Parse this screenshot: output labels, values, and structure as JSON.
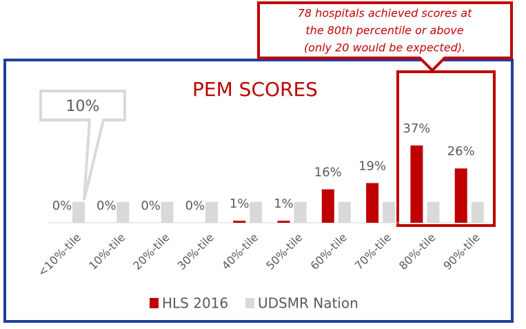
{
  "chart_data": {
    "type": "bar",
    "title": "PEM SCORES",
    "categories": [
      "<10%-tile",
      "10%-tile",
      "20%-tile",
      "30%-tile",
      "40%-tile",
      "50%-tile",
      "60%-tile",
      "70%-tile",
      "80%-tile",
      "90%-tile"
    ],
    "series": [
      {
        "name": "HLS 2016",
        "color": "#c00000",
        "values": [
          0,
          0,
          0,
          0,
          1,
          1,
          16,
          19,
          37,
          26
        ],
        "value_labels": [
          "0%",
          "0%",
          "0%",
          "0%",
          "1%",
          "1%",
          "16%",
          "19%",
          "37%",
          "26%"
        ]
      },
      {
        "name": "UDSMR Nation",
        "color": "#d9d9d9",
        "values": [
          10,
          10,
          10,
          10,
          10,
          10,
          10,
          10,
          10,
          10
        ],
        "value_labels": [
          "10%",
          null,
          null,
          null,
          null,
          null,
          null,
          null,
          null,
          null
        ]
      }
    ],
    "annotation": [
      "78 hospitals achieved scores at",
      "the 80th percentile or above",
      "(only 20 would be expected)."
    ],
    "legend": "bottom"
  }
}
